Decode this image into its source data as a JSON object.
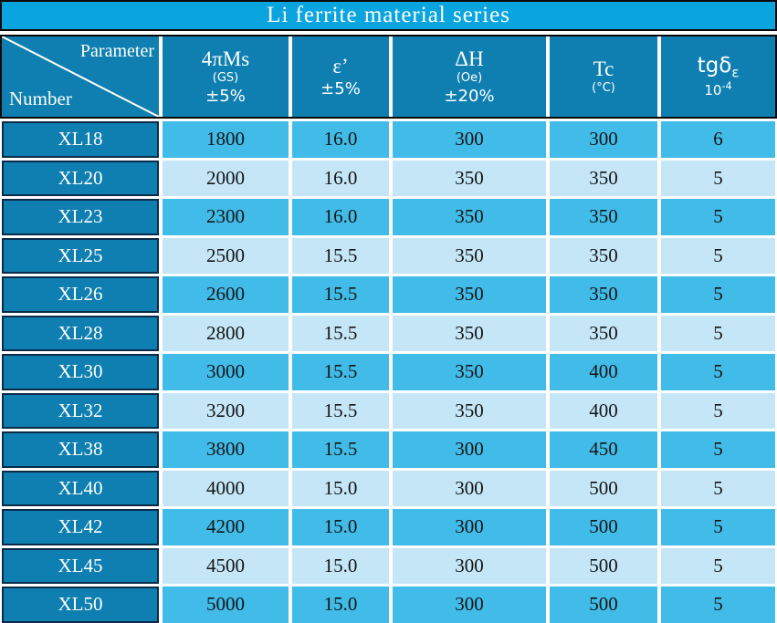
{
  "title_bar": {
    "text": "Li ferrite material series"
  },
  "header": {
    "corner": {
      "top_right": "Parameter",
      "bottom_left": "Number"
    },
    "ms": {
      "main": "4πMs",
      "unit": "(GS)",
      "tolerance": "±5%"
    },
    "eps": {
      "main": "ε’",
      "tolerance": "±5%"
    },
    "dh": {
      "main": "ΔH",
      "unit": "(Oe)",
      "tolerance": "±20%"
    },
    "tc": {
      "main": "Tc",
      "unit": "(°C)"
    },
    "tgd": {
      "main": "tgδ",
      "subscript": "ε",
      "scale_base": "10",
      "scale_exponent": "-4"
    }
  },
  "colors": {
    "title_background": "#0AA5DF",
    "header_background": "#0E7FB0",
    "row_number_background": "#0E7FB0",
    "row_alt_medium": "#41BBE8",
    "row_alt_light": "#C4E6F7",
    "number_cell_border": "#0B2B49",
    "outer_outline": "#0A0A0A",
    "header_text": "#FFFFFF",
    "data_text": "#151515"
  },
  "chart_data": {
    "type": "table",
    "title": "Li ferrite material series",
    "columns": [
      "Number",
      "4πMs (GS) ±5%",
      "ε' ±5%",
      "ΔH (Oe) ±20%",
      "Tc (°C)",
      "tgδε 10^-4"
    ],
    "rows": [
      [
        "XL18",
        "1800",
        "16.0",
        "300",
        "300",
        "6"
      ],
      [
        "XL20",
        "2000",
        "16.0",
        "350",
        "350",
        "5"
      ],
      [
        "XL23",
        "2300",
        "16.0",
        "350",
        "350",
        "5"
      ],
      [
        "XL25",
        "2500",
        "15.5",
        "350",
        "350",
        "5"
      ],
      [
        "XL26",
        "2600",
        "15.5",
        "350",
        "350",
        "5"
      ],
      [
        "XL28",
        "2800",
        "15.5",
        "350",
        "350",
        "5"
      ],
      [
        "XL30",
        "3000",
        "15.5",
        "350",
        "400",
        "5"
      ],
      [
        "XL32",
        "3200",
        "15.5",
        "350",
        "400",
        "5"
      ],
      [
        "XL38",
        "3800",
        "15.5",
        "300",
        "450",
        "5"
      ],
      [
        "XL40",
        "4000",
        "15.0",
        "300",
        "500",
        "5"
      ],
      [
        "XL42",
        "4200",
        "15.0",
        "300",
        "500",
        "5"
      ],
      [
        "XL45",
        "4500",
        "15.0",
        "300",
        "500",
        "5"
      ],
      [
        "XL50",
        "5000",
        "15.0",
        "300",
        "500",
        "5"
      ]
    ]
  }
}
